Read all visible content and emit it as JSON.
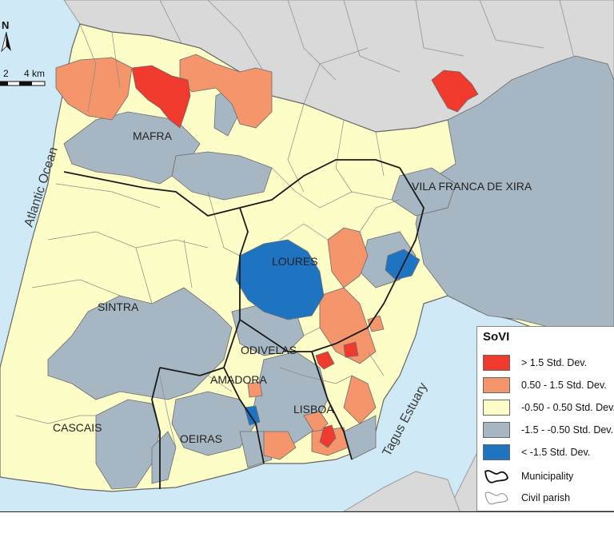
{
  "map": {
    "municipalities": [
      "MAFRA",
      "VILA FRANCA DE XIRA",
      "LOURES",
      "SINTRA",
      "ODIVELAS",
      "AMADORA",
      "CASCAIS",
      "OEIRAS",
      "LISBOA"
    ],
    "water_labels": {
      "ocean": "Atlantic Ocean",
      "estuary": "Tagus Estuary"
    },
    "scale_bar": {
      "mid": "2",
      "end": "4 km"
    },
    "north_arrow": "N",
    "colors": {
      "water": "#cfe9f7",
      "outside": "#d9d9d9",
      "gt_1_5": "#f03a2e",
      "c_0_5_1_5": "#f4956b",
      "c_m05_05": "#fdfdc7",
      "c_m15_m05": "#a6b7c3",
      "lt_m1_5": "#1f74c1"
    }
  },
  "legend": {
    "title": "SoVI",
    "items": [
      {
        "label": "> 1.5 Std. Dev.",
        "color": "#f03a2e"
      },
      {
        "label": "0.50 - 1.5 Std. Dev.",
        "color": "#f4956b"
      },
      {
        "label": "-0.50 - 0.50 Std. Dev.",
        "color": "#fdfdc7"
      },
      {
        "label": "-1.5 - -0.50 Std. Dev.",
        "color": "#a6b7c3"
      },
      {
        "label": "< -1.5 Std. Dev.",
        "color": "#1f74c1"
      }
    ],
    "boundaries": [
      {
        "label": "Municipality",
        "icon": "municipality-boundary-icon"
      },
      {
        "label": "Civil parish",
        "icon": "civil-parish-boundary-icon"
      }
    ]
  }
}
